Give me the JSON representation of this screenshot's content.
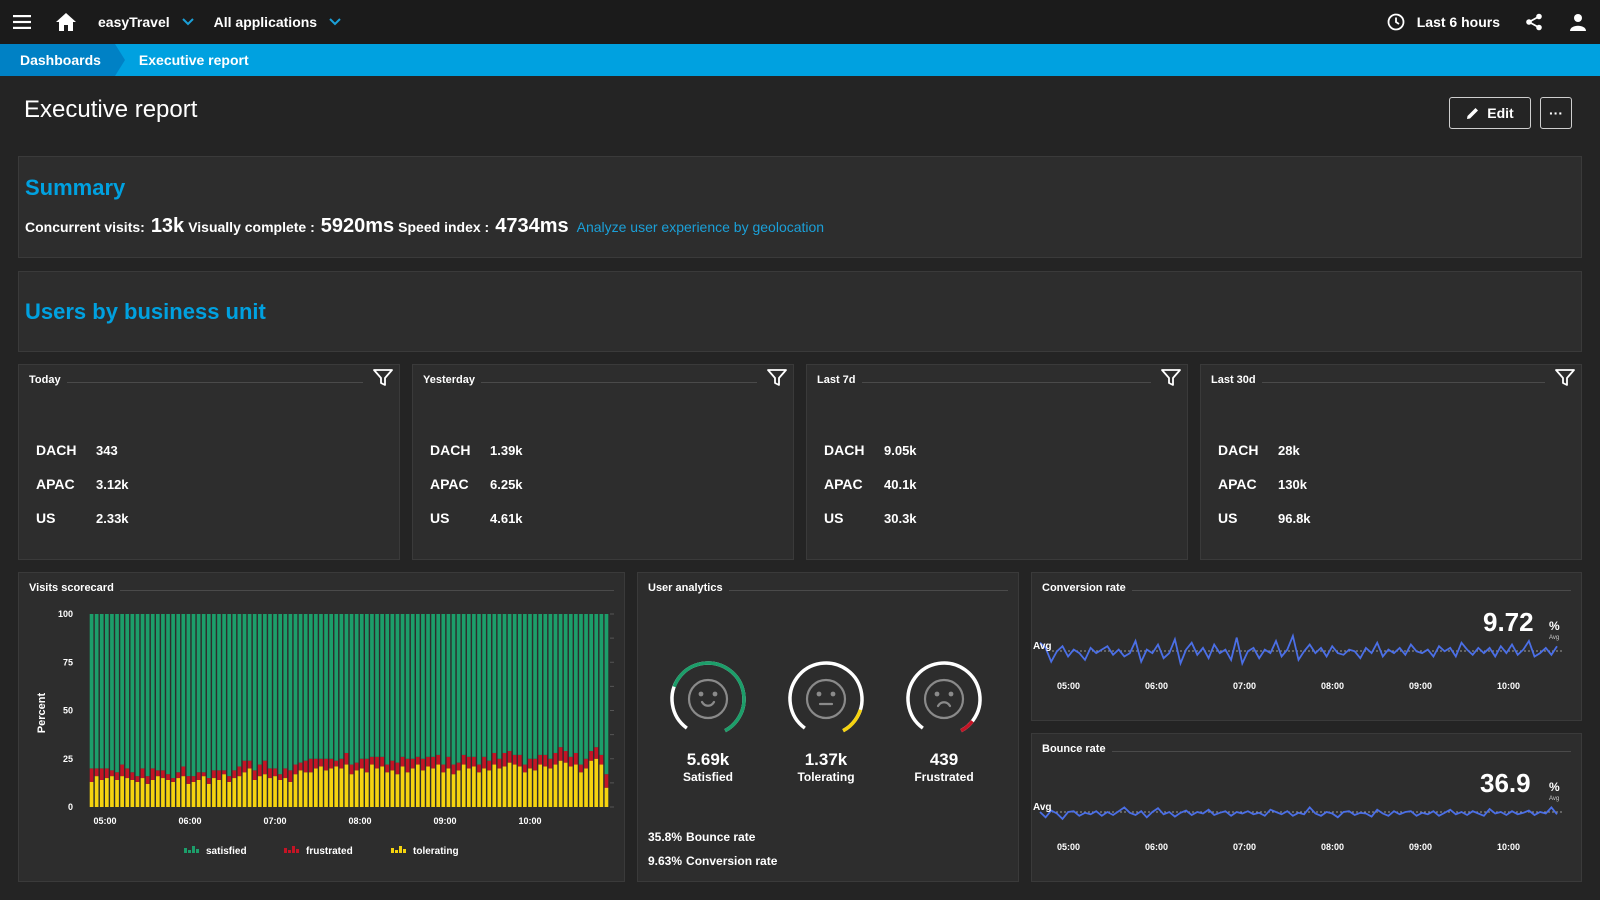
{
  "topbar": {
    "app": "easyTravel",
    "applications": "All applications",
    "timeframe": "Last 6 hours"
  },
  "breadcrumbs": [
    "Dashboards",
    "Executive report"
  ],
  "page": {
    "title": "Executive report",
    "edit_label": "Edit",
    "more_label": "···"
  },
  "summary": {
    "title": "Summary",
    "concurrent_label": "Concurrent visits:",
    "concurrent_value": "13k",
    "visually_label": "Visually complete :",
    "visually_value": "5920ms",
    "speed_label": "Speed index :",
    "speed_value": "4734ms",
    "link": "Analyze user experience by geolocation"
  },
  "business_units": {
    "title": "Users by business unit",
    "tiles": [
      {
        "title": "Today",
        "rows": [
          {
            "k": "DACH",
            "v": "343"
          },
          {
            "k": "APAC",
            "v": "3.12k"
          },
          {
            "k": "US",
            "v": "2.33k"
          }
        ]
      },
      {
        "title": "Yesterday",
        "rows": [
          {
            "k": "DACH",
            "v": "1.39k"
          },
          {
            "k": "APAC",
            "v": "6.25k"
          },
          {
            "k": "US",
            "v": "4.61k"
          }
        ]
      },
      {
        "title": "Last 7d",
        "rows": [
          {
            "k": "DACH",
            "v": "9.05k"
          },
          {
            "k": "APAC",
            "v": "40.1k"
          },
          {
            "k": "US",
            "v": "30.3k"
          }
        ]
      },
      {
        "title": "Last 30d",
        "rows": [
          {
            "k": "DACH",
            "v": "28k"
          },
          {
            "k": "APAC",
            "v": "130k"
          },
          {
            "k": "US",
            "v": "96.8k"
          }
        ]
      }
    ]
  },
  "visits_scorecard": {
    "title": "Visits scorecard",
    "legend": [
      "satisfied",
      "frustrated",
      "tolerating"
    ]
  },
  "user_analytics": {
    "title": "User analytics",
    "faces": [
      {
        "value": "5.69k",
        "label": "Satisfied"
      },
      {
        "value": "1.37k",
        "label": "Tolerating"
      },
      {
        "value": "439",
        "label": "Frustrated"
      }
    ],
    "bounce_value": "35.8%",
    "bounce_label": "Bounce rate",
    "conversion_value": "9.63%",
    "conversion_label": "Conversion rate"
  },
  "conversion": {
    "title": "Conversion rate",
    "value": "9.72",
    "unit": "%",
    "unit_sub": "Avg",
    "avg_label": "Avg"
  },
  "bounce": {
    "title": "Bounce rate",
    "value": "36.9",
    "unit": "%",
    "unit_sub": "Avg",
    "avg_label": "Avg"
  },
  "colors": {
    "satisfied": "#1c9e6a",
    "frustrated": "#c41425",
    "tolerating": "#f5d30f",
    "line": "#4b6fe6",
    "accent": "#00a1e0"
  },
  "chart_data": [
    {
      "type": "bar",
      "title": "Visits scorecard",
      "ylabel": "Percent",
      "ylim": [
        0,
        100
      ],
      "yticks": [
        "100",
        "75",
        "50",
        "25",
        "0"
      ],
      "xticks": [
        "05:00",
        "06:00",
        "07:00",
        "08:00",
        "09:00",
        "10:00"
      ],
      "stacked": true,
      "series": [
        {
          "name": "tolerating",
          "values": [
            13,
            16,
            14,
            15,
            16,
            14,
            16,
            15,
            14,
            13,
            15,
            12,
            14,
            16,
            15,
            14,
            13,
            15,
            16,
            12,
            13,
            14,
            16,
            12,
            15,
            14,
            17,
            13,
            15,
            16,
            18,
            20,
            14,
            16,
            17,
            15,
            16,
            14,
            15,
            13,
            17,
            19,
            18,
            18,
            20,
            21,
            19,
            20,
            21,
            20,
            22,
            17,
            19,
            20,
            18,
            22,
            20,
            21,
            18,
            19,
            17,
            21,
            18,
            20,
            22,
            19,
            21,
            20,
            22,
            18,
            20,
            17,
            19,
            22,
            20,
            21,
            18,
            20,
            19,
            22,
            20,
            21,
            23,
            22,
            21,
            18,
            20,
            19,
            22,
            21,
            20,
            22,
            24,
            23,
            21,
            22,
            18,
            20,
            24,
            25,
            22,
            10
          ]
        },
        {
          "name": "frustrated",
          "values": [
            7,
            4,
            6,
            5,
            3,
            4,
            6,
            5,
            4,
            3,
            5,
            4,
            6,
            3,
            4,
            3,
            2,
            3,
            5,
            4,
            3,
            4,
            2,
            3,
            4,
            5,
            2,
            3,
            4,
            5,
            6,
            4,
            5,
            6,
            7,
            5,
            4,
            3,
            5,
            6,
            5,
            4,
            6,
            7,
            5,
            4,
            6,
            5,
            3,
            5,
            6,
            5,
            4,
            5,
            7,
            4,
            6,
            5,
            4,
            5,
            6,
            5,
            7,
            5,
            4,
            6,
            5,
            6,
            5,
            4,
            6,
            5,
            4,
            5,
            6,
            5,
            4,
            6,
            5,
            6,
            5,
            7,
            6,
            5,
            6,
            4,
            5,
            6,
            5,
            6,
            5,
            6,
            7,
            6,
            5,
            6,
            4,
            5,
            5,
            6,
            5,
            7
          ]
        },
        {
          "name": "satisfied",
          "values": [
            80,
            80,
            80,
            80,
            81,
            82,
            78,
            80,
            82,
            84,
            80,
            84,
            80,
            81,
            81,
            83,
            85,
            82,
            79,
            84,
            84,
            82,
            82,
            85,
            81,
            81,
            81,
            84,
            81,
            79,
            76,
            76,
            81,
            78,
            76,
            80,
            80,
            83,
            80,
            81,
            78,
            77,
            76,
            75,
            75,
            75,
            75,
            75,
            76,
            75,
            72,
            78,
            77,
            75,
            75,
            74,
            74,
            74,
            78,
            76,
            77,
            74,
            75,
            75,
            74,
            75,
            74,
            74,
            73,
            78,
            74,
            78,
            77,
            73,
            74,
            74,
            78,
            74,
            76,
            72,
            75,
            72,
            71,
            73,
            73,
            78,
            75,
            75,
            73,
            73,
            75,
            72,
            69,
            71,
            74,
            72,
            78,
            75,
            71,
            69,
            73,
            83
          ]
        }
      ]
    },
    {
      "type": "line",
      "title": "Conversion rate",
      "xticks": [
        "05:00",
        "06:00",
        "07:00",
        "08:00",
        "09:00",
        "10:00"
      ],
      "series": [
        {
          "name": "Conversion rate",
          "values": [
            10.2,
            9.9,
            9.1,
            9.7,
            10.0,
            9.4,
            9.8,
            9.6,
            9.2,
            9.9,
            9.6,
            9.8,
            10.0,
            9.5,
            9.8,
            9.4,
            9.6,
            10.3,
            9.1,
            9.8,
            9.6,
            10.1,
            9.3,
            9.6,
            10.4,
            9.0,
            9.8,
            10.2,
            9.5,
            9.9,
            9.3,
            10.1,
            9.6,
            9.8,
            9.2,
            10.5,
            9.0,
            9.7,
            9.9,
            9.3,
            9.8,
            9.6,
            10.3,
            9.4,
            9.8,
            10.6,
            9.2,
            9.7,
            10.1,
            9.6,
            9.9,
            9.4,
            10.0,
            9.6,
            9.5,
            9.8,
            9.7,
            9.3,
            9.9,
            9.6,
            10.2,
            9.4,
            9.8,
            9.6,
            9.9,
            9.5,
            10.1,
            9.7,
            9.6,
            9.8,
            9.4,
            10.0,
            9.7,
            9.9,
            9.4,
            10.2,
            9.8,
            9.5,
            9.9,
            9.6,
            9.9,
            9.4,
            10.0,
            9.6,
            10.1,
            9.5,
            9.8,
            10.3,
            9.4,
            9.6,
            9.9,
            9.5,
            10.0
          ]
        }
      ],
      "avg_line": 9.72
    },
    {
      "type": "line",
      "title": "Bounce rate",
      "xticks": [
        "05:00",
        "06:00",
        "07:00",
        "08:00",
        "09:00",
        "10:00"
      ],
      "series": [
        {
          "name": "Bounce rate",
          "values": [
            36.9,
            36.2,
            37.1,
            36.7,
            36.0,
            36.9,
            37.0,
            36.4,
            36.8,
            36.6,
            37.0,
            36.4,
            36.9,
            36.5,
            37.0,
            37.5,
            36.8,
            36.5,
            37.0,
            36.2,
            36.9,
            37.4,
            36.6,
            36.9,
            36.3,
            36.8,
            37.1,
            36.5,
            36.9,
            36.7,
            37.2,
            36.5,
            36.8,
            37.0,
            36.4,
            36.9,
            36.7,
            37.0,
            36.6,
            36.8,
            36.4,
            37.2,
            36.9,
            36.6,
            37.0,
            36.4,
            36.8,
            36.6,
            37.5,
            36.7,
            36.4,
            36.9,
            36.7,
            36.2,
            36.9,
            37.0,
            36.5,
            36.8,
            36.7,
            36.3,
            37.2,
            36.7,
            36.4,
            37.0,
            36.6,
            36.9,
            37.0,
            36.4,
            36.8,
            36.6,
            37.0,
            36.4,
            36.8,
            37.2,
            36.6,
            36.9,
            36.5,
            37.0,
            36.7,
            36.4,
            37.3,
            36.7,
            36.9,
            36.5,
            37.0,
            36.6,
            36.8,
            37.1,
            36.5,
            36.9,
            36.7,
            37.5,
            36.6
          ]
        }
      ],
      "avg_line": 36.9
    }
  ]
}
